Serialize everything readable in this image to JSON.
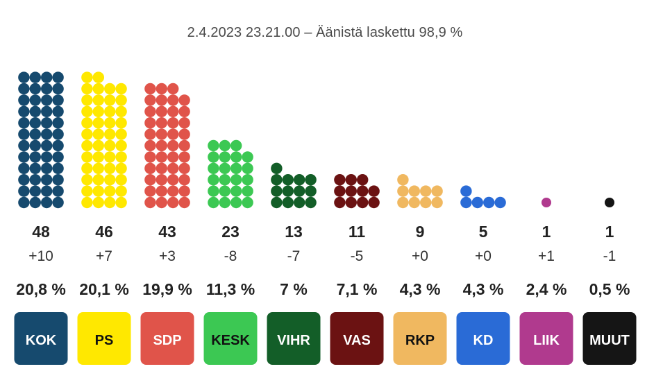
{
  "chart_data": {
    "type": "dot-column",
    "subtitle": "2.4.2023 23.21.00 – Äänistä laskettu 98,9 %",
    "parties": [
      {
        "abbr": "KOK",
        "seats": 48,
        "change": "+10",
        "share": "20,8 %",
        "color": "#164a6e",
        "text_color": "#ffffff"
      },
      {
        "abbr": "PS",
        "seats": 46,
        "change": "+7",
        "share": "20,1 %",
        "color": "#ffe800",
        "text_color": "#111111"
      },
      {
        "abbr": "SDP",
        "seats": 43,
        "change": "+3",
        "share": "19,9 %",
        "color": "#e0544a",
        "text_color": "#ffffff"
      },
      {
        "abbr": "KESK",
        "seats": 23,
        "change": "-8",
        "share": "11,3 %",
        "color": "#3cc853",
        "text_color": "#111111"
      },
      {
        "abbr": "VIHR",
        "seats": 13,
        "change": "-7",
        "share": "7 %",
        "color": "#135e28",
        "text_color": "#ffffff"
      },
      {
        "abbr": "VAS",
        "seats": 11,
        "change": "-5",
        "share": "7,1 %",
        "color": "#6b1212",
        "text_color": "#ffffff"
      },
      {
        "abbr": "RKP",
        "seats": 9,
        "change": "+0",
        "share": "4,3 %",
        "color": "#f0b860",
        "text_color": "#111111"
      },
      {
        "abbr": "KD",
        "seats": 5,
        "change": "+0",
        "share": "4,3 %",
        "color": "#2a6bd6",
        "text_color": "#ffffff"
      },
      {
        "abbr": "LIIK",
        "seats": 1,
        "change": "+1",
        "share": "2,4 %",
        "color": "#b03a8e",
        "text_color": "#ffffff"
      },
      {
        "abbr": "MUUT",
        "seats": 1,
        "change": "-1",
        "share": "0,5 %",
        "color": "#151515",
        "text_color": "#ffffff"
      }
    ]
  }
}
